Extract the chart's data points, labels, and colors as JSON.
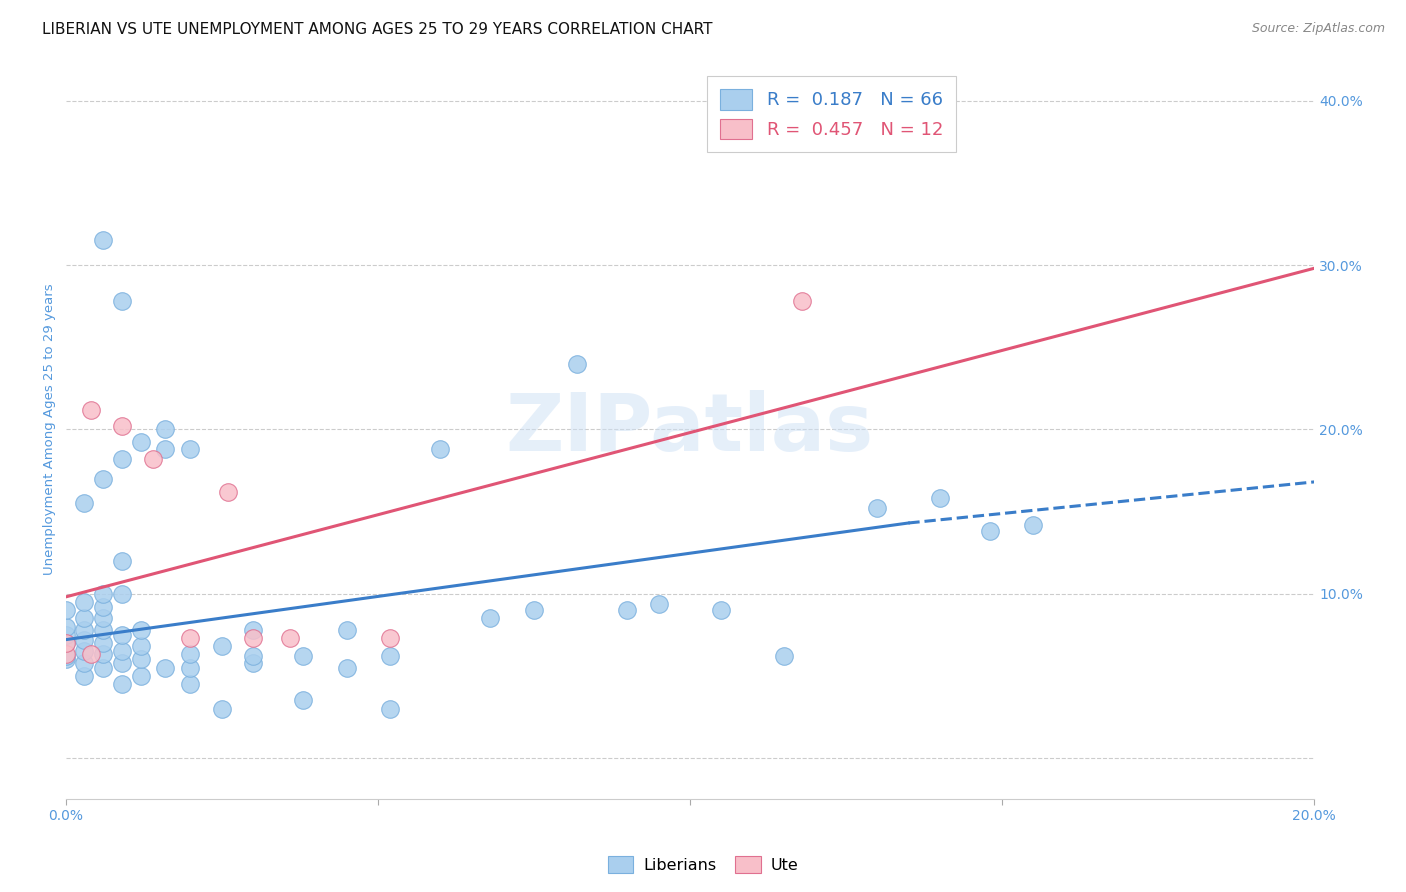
{
  "title": "LIBERIAN VS UTE UNEMPLOYMENT AMONG AGES 25 TO 29 YEARS CORRELATION CHART",
  "source": "Source: ZipAtlas.com",
  "ylabel": "Unemployment Among Ages 25 to 29 years",
  "xlim": [
    0.0,
    0.2
  ],
  "ylim": [
    -0.025,
    0.425
  ],
  "yticks": [
    0.0,
    0.1,
    0.2,
    0.3,
    0.4
  ],
  "xticks": [
    0.0,
    0.05,
    0.1,
    0.15,
    0.2
  ],
  "xtick_labels": [
    "0.0%",
    "",
    "",
    "",
    "20.0%"
  ],
  "ytick_labels": [
    "",
    "10.0%",
    "20.0%",
    "30.0%",
    "40.0%"
  ],
  "liberian_color": "#aacfee",
  "liberian_edge": "#7ab0de",
  "ute_color": "#f8bfc9",
  "ute_edge": "#e07090",
  "liberian_R": 0.187,
  "liberian_N": 66,
  "ute_R": 0.457,
  "ute_N": 12,
  "trendline_liberian_color": "#3a7dc9",
  "trendline_ute_color": "#e05575",
  "watermark": "ZIPatlas",
  "liberian_x": [
    0.0,
    0.0,
    0.0,
    0.0,
    0.0,
    0.0,
    0.003,
    0.003,
    0.003,
    0.003,
    0.003,
    0.003,
    0.003,
    0.003,
    0.006,
    0.006,
    0.006,
    0.006,
    0.006,
    0.006,
    0.006,
    0.006,
    0.006,
    0.009,
    0.009,
    0.009,
    0.009,
    0.009,
    0.009,
    0.009,
    0.009,
    0.012,
    0.012,
    0.012,
    0.012,
    0.012,
    0.016,
    0.016,
    0.016,
    0.02,
    0.02,
    0.02,
    0.02,
    0.025,
    0.025,
    0.03,
    0.03,
    0.03,
    0.038,
    0.038,
    0.045,
    0.045,
    0.052,
    0.052,
    0.06,
    0.068,
    0.075,
    0.082,
    0.09,
    0.095,
    0.105,
    0.115,
    0.13,
    0.14,
    0.148,
    0.155
  ],
  "liberian_y": [
    0.06,
    0.062,
    0.07,
    0.075,
    0.08,
    0.09,
    0.05,
    0.058,
    0.065,
    0.072,
    0.078,
    0.085,
    0.095,
    0.155,
    0.055,
    0.063,
    0.07,
    0.078,
    0.085,
    0.092,
    0.1,
    0.17,
    0.315,
    0.045,
    0.058,
    0.065,
    0.075,
    0.1,
    0.12,
    0.182,
    0.278,
    0.05,
    0.06,
    0.068,
    0.078,
    0.192,
    0.055,
    0.188,
    0.2,
    0.045,
    0.055,
    0.063,
    0.188,
    0.03,
    0.068,
    0.058,
    0.062,
    0.078,
    0.035,
    0.062,
    0.055,
    0.078,
    0.03,
    0.062,
    0.188,
    0.085,
    0.09,
    0.24,
    0.09,
    0.094,
    0.09,
    0.062,
    0.152,
    0.158,
    0.138,
    0.142
  ],
  "ute_x": [
    0.0,
    0.0,
    0.004,
    0.004,
    0.009,
    0.014,
    0.02,
    0.026,
    0.03,
    0.036,
    0.052,
    0.118
  ],
  "ute_y": [
    0.063,
    0.07,
    0.063,
    0.212,
    0.202,
    0.182,
    0.073,
    0.162,
    0.073,
    0.073,
    0.073,
    0.278
  ],
  "liberian_trend_x0": 0.0,
  "liberian_trend_x_solid_end": 0.135,
  "liberian_trend_x1": 0.2,
  "liberian_trend_y0": 0.072,
  "liberian_trend_y_at_solid_end": 0.143,
  "liberian_trend_y1": 0.168,
  "ute_trend_x0": 0.0,
  "ute_trend_x1": 0.2,
  "ute_trend_y0": 0.098,
  "ute_trend_y1": 0.298,
  "background_color": "#ffffff",
  "grid_color": "#cccccc",
  "axis_color": "#5599dd",
  "title_color": "#111111",
  "title_fontsize": 11,
  "label_fontsize": 9.5,
  "tick_fontsize": 10,
  "source_fontsize": 9,
  "legend_text_color": "#3a7dc9",
  "legend_R_N_liberian": "R =  0.187   N = 66",
  "legend_R_N_ute": "R =  0.457   N = 12"
}
